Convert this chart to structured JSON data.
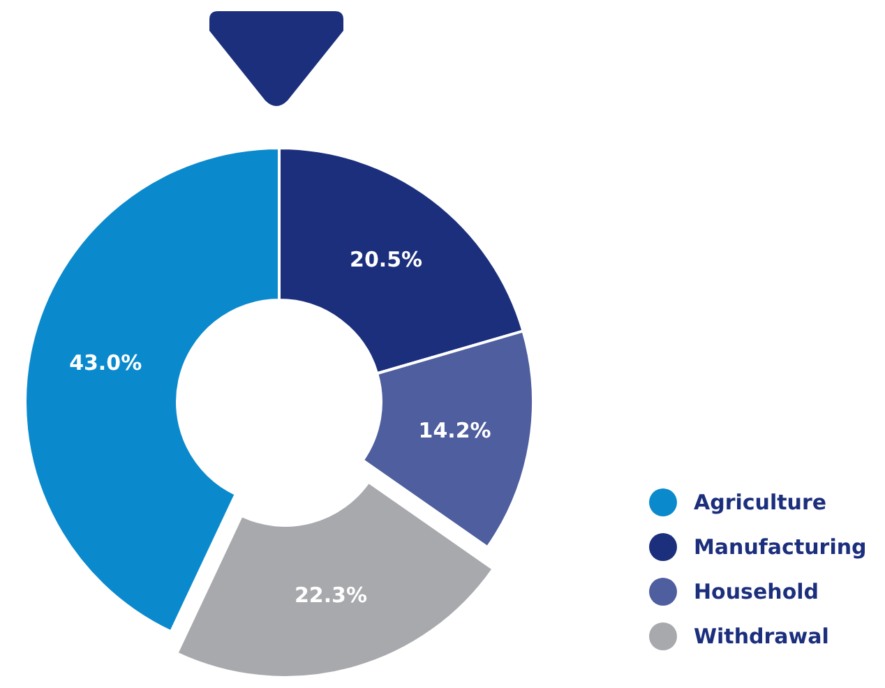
{
  "chart_data": {
    "type": "donut",
    "categories": [
      "Agriculture",
      "Manufacturing",
      "Household",
      "Withdrawal"
    ],
    "values": [
      43.0,
      20.5,
      14.2,
      22.3
    ],
    "colors": [
      "#0a8acd",
      "#1c2f7d",
      "#4e5e9e",
      "#a8a9ad"
    ],
    "value_labels": [
      "43.0%",
      "20.5%",
      "14.2%",
      "22.3%"
    ],
    "legend": "bottom right"
  }
}
